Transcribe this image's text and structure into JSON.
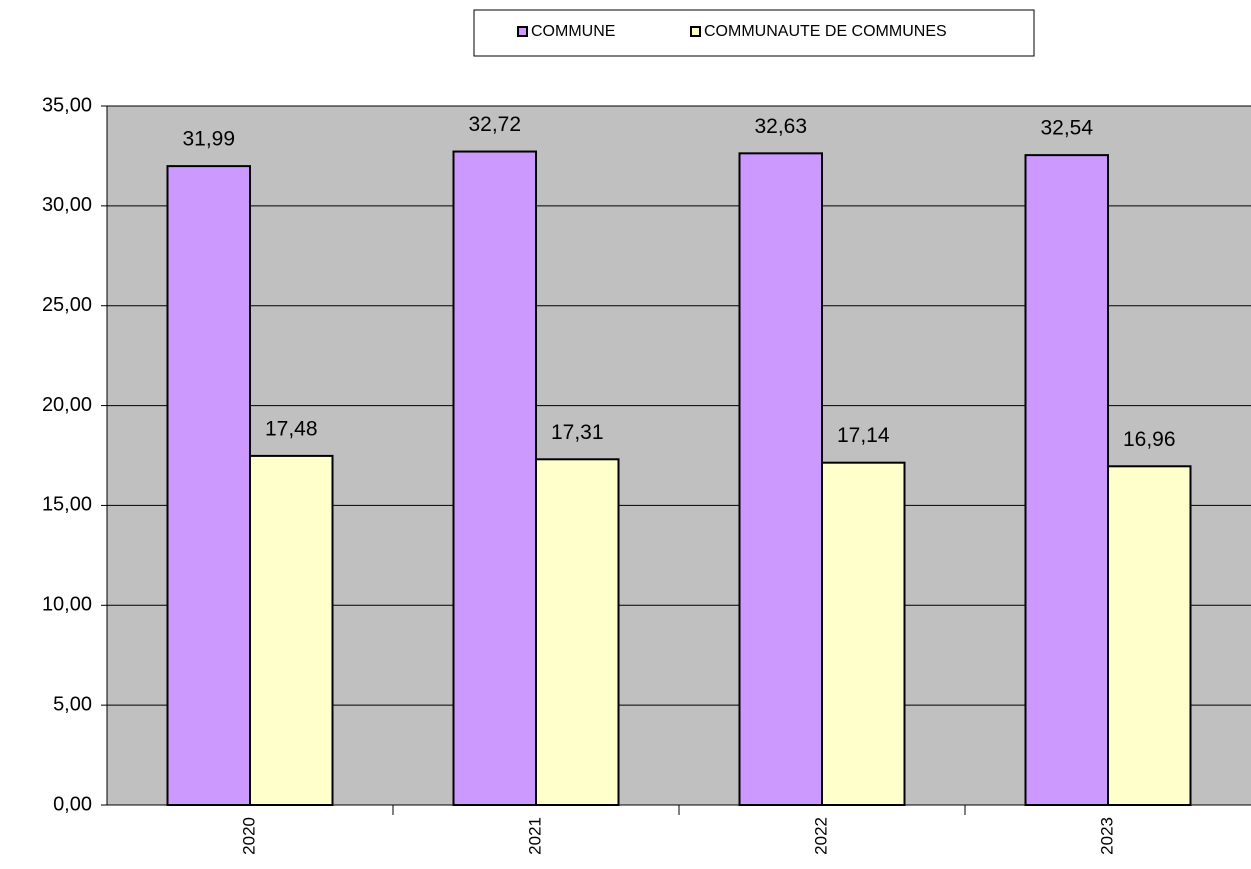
{
  "chart_data": {
    "type": "bar",
    "categories": [
      "2020",
      "2021",
      "2022",
      "2023"
    ],
    "series": [
      {
        "name": "COMMUNE",
        "color": "#cc99ff",
        "values": [
          31.99,
          32.72,
          32.63,
          32.54
        ],
        "value_labels": [
          "31,99",
          "32,72",
          "32,63",
          "32,54"
        ]
      },
      {
        "name": "COMMUNAUTE DE COMMUNES",
        "color": "#ffffcc",
        "values": [
          17.48,
          17.31,
          17.14,
          16.96
        ],
        "value_labels": [
          "17,48",
          "17,31",
          "17,14",
          "16,96"
        ]
      }
    ],
    "ylim": [
      0,
      35
    ],
    "yticks": [
      {
        "value": 0,
        "label": "0,00"
      },
      {
        "value": 5,
        "label": "5,00"
      },
      {
        "value": 10,
        "label": "10,00"
      },
      {
        "value": 15,
        "label": "15,00"
      },
      {
        "value": 20,
        "label": "20,00"
      },
      {
        "value": 25,
        "label": "25,00"
      },
      {
        "value": 30,
        "label": "30,00"
      },
      {
        "value": 35,
        "label": "35,00"
      }
    ],
    "grid": true,
    "legend": "top"
  }
}
